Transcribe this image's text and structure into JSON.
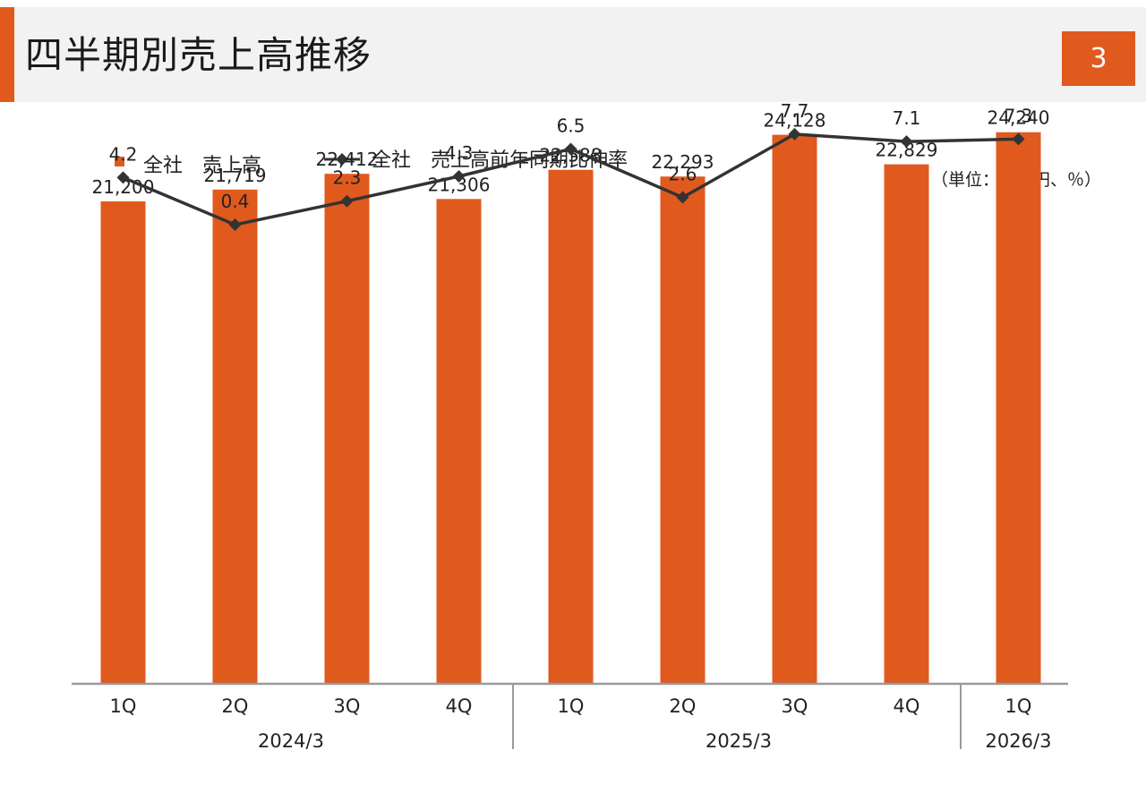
{
  "header": {
    "title": "四半期別売上高推移",
    "page_number": "3"
  },
  "legend": {
    "bar_label": "全社　売上高",
    "line_label": "全社　売上高前年同期比伸率"
  },
  "unit_label": "（単位：百万円、％）",
  "colors": {
    "accent": "#e05a1e",
    "line": "#333333",
    "axis": "#9a9a9a"
  },
  "chart_data": {
    "type": "bar",
    "categories": [
      "1Q",
      "2Q",
      "3Q",
      "4Q",
      "1Q",
      "2Q",
      "3Q",
      "4Q",
      "1Q"
    ],
    "groups": [
      {
        "label": "2024/3",
        "count": 4
      },
      {
        "label": "2025/3",
        "count": 4
      },
      {
        "label": "2026/3",
        "count": 1
      }
    ],
    "series": [
      {
        "name": "全社　売上高",
        "type": "bar",
        "values": [
          21200,
          21719,
          22412,
          21306,
          22588,
          22293,
          24128,
          22829,
          24240
        ],
        "labels": [
          "21,200",
          "21,719",
          "22,412",
          "21,306",
          "22,588",
          "22,293",
          "24,128",
          "22,829",
          "24,240"
        ]
      },
      {
        "name": "全社　売上高前年同期比伸率",
        "type": "line",
        "values": [
          4.2,
          0.4,
          2.3,
          4.3,
          6.5,
          2.6,
          7.7,
          7.1,
          7.3
        ],
        "labels": [
          "4.2",
          "0.4",
          "2.3",
          "4.3",
          "6.5",
          "2.6",
          "7.7",
          "7.1",
          "7.3"
        ]
      }
    ],
    "ylim": [
      0,
      29500
    ],
    "y2lim": [
      -36.6,
      17.5
    ],
    "grid": false,
    "legend_position": "top-left"
  }
}
